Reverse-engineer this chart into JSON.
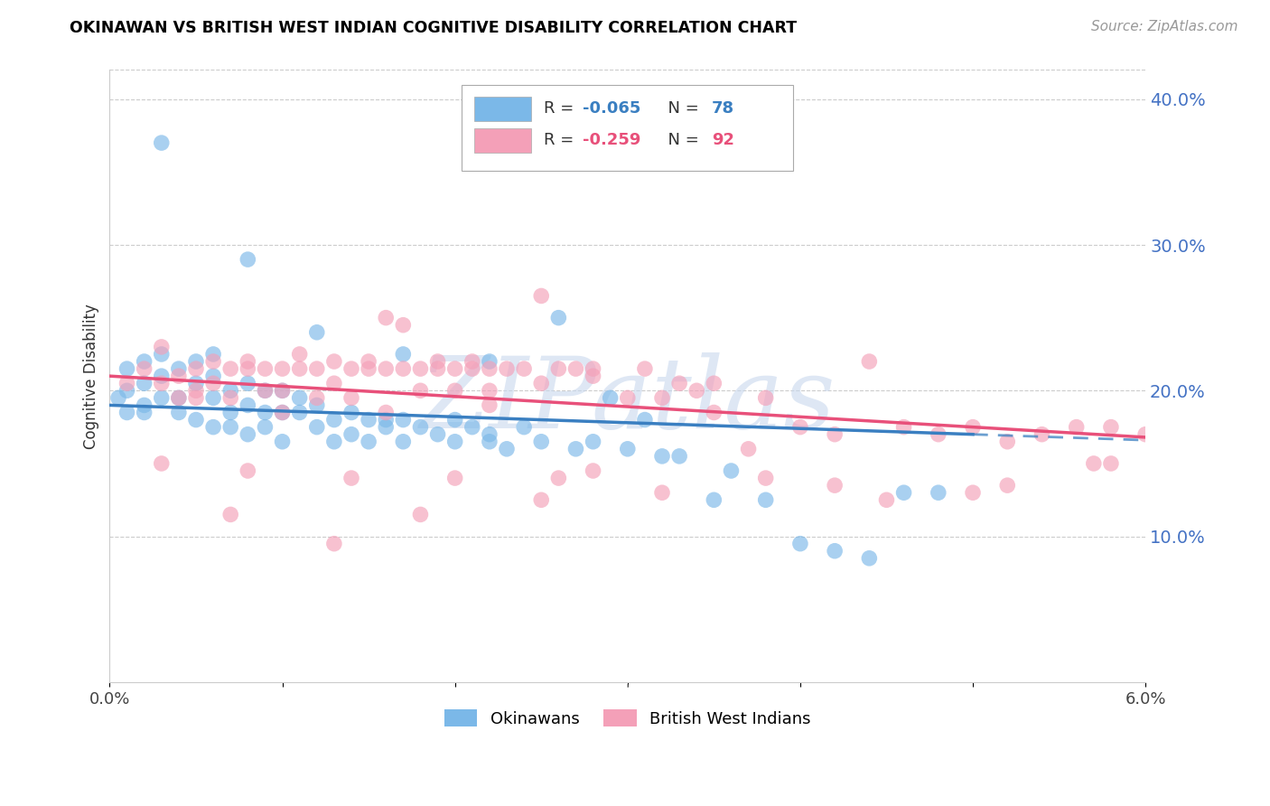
{
  "title": "OKINAWAN VS BRITISH WEST INDIAN COGNITIVE DISABILITY CORRELATION CHART",
  "source": "Source: ZipAtlas.com",
  "ylabel": "Cognitive Disability",
  "xlim": [
    0.0,
    0.06
  ],
  "ylim": [
    0.0,
    0.42
  ],
  "xtick_positions": [
    0.0,
    0.01,
    0.02,
    0.03,
    0.04,
    0.05,
    0.06
  ],
  "xticklabels": [
    "0.0%",
    "",
    "",
    "",
    "",
    "",
    "6.0%"
  ],
  "yticks_right": [
    0.1,
    0.2,
    0.3,
    0.4
  ],
  "ytick_right_labels": [
    "10.0%",
    "20.0%",
    "30.0%",
    "40.0%"
  ],
  "blue_color": "#7bb8e8",
  "pink_color": "#f4a0b8",
  "blue_line_color": "#3a7fc1",
  "pink_line_color": "#e8507a",
  "R_blue": -0.065,
  "N_blue": 78,
  "R_pink": -0.259,
  "N_pink": 92,
  "legend_label_blue": "Okinawans",
  "legend_label_pink": "British West Indians",
  "watermark": "ZIPatlas",
  "watermark_color": "#c8d8ee",
  "background_color": "#ffffff",
  "grid_color": "#cccccc",
  "title_color": "#000000",
  "axis_label_color": "#333333",
  "right_tick_color": "#4472c4",
  "blue_line_intercept": 0.19,
  "blue_line_slope": -0.4,
  "pink_line_intercept": 0.21,
  "pink_line_slope": -0.7,
  "blue_scatter_x": [
    0.0005,
    0.001,
    0.001,
    0.001,
    0.002,
    0.002,
    0.002,
    0.002,
    0.003,
    0.003,
    0.003,
    0.004,
    0.004,
    0.004,
    0.005,
    0.005,
    0.005,
    0.006,
    0.006,
    0.006,
    0.006,
    0.007,
    0.007,
    0.007,
    0.008,
    0.008,
    0.008,
    0.009,
    0.009,
    0.009,
    0.01,
    0.01,
    0.01,
    0.011,
    0.011,
    0.012,
    0.012,
    0.013,
    0.013,
    0.014,
    0.014,
    0.015,
    0.015,
    0.016,
    0.016,
    0.017,
    0.017,
    0.018,
    0.019,
    0.02,
    0.02,
    0.021,
    0.022,
    0.022,
    0.023,
    0.024,
    0.025,
    0.026,
    0.027,
    0.028,
    0.029,
    0.03,
    0.031,
    0.032,
    0.033,
    0.035,
    0.036,
    0.038,
    0.04,
    0.042,
    0.044,
    0.046,
    0.048,
    0.003,
    0.008,
    0.012,
    0.017,
    0.022
  ],
  "blue_scatter_y": [
    0.195,
    0.185,
    0.2,
    0.215,
    0.19,
    0.205,
    0.22,
    0.185,
    0.195,
    0.21,
    0.225,
    0.195,
    0.215,
    0.185,
    0.205,
    0.22,
    0.18,
    0.195,
    0.21,
    0.175,
    0.225,
    0.185,
    0.2,
    0.175,
    0.19,
    0.205,
    0.17,
    0.185,
    0.2,
    0.175,
    0.185,
    0.2,
    0.165,
    0.185,
    0.195,
    0.175,
    0.19,
    0.165,
    0.18,
    0.185,
    0.17,
    0.18,
    0.165,
    0.18,
    0.175,
    0.165,
    0.18,
    0.175,
    0.17,
    0.18,
    0.165,
    0.175,
    0.17,
    0.165,
    0.16,
    0.175,
    0.165,
    0.25,
    0.16,
    0.165,
    0.195,
    0.16,
    0.18,
    0.155,
    0.155,
    0.125,
    0.145,
    0.125,
    0.095,
    0.09,
    0.085,
    0.13,
    0.13,
    0.37,
    0.29,
    0.24,
    0.225,
    0.22
  ],
  "pink_scatter_x": [
    0.001,
    0.002,
    0.003,
    0.003,
    0.004,
    0.004,
    0.005,
    0.005,
    0.006,
    0.006,
    0.007,
    0.007,
    0.008,
    0.008,
    0.009,
    0.009,
    0.01,
    0.01,
    0.011,
    0.011,
    0.012,
    0.012,
    0.013,
    0.013,
    0.014,
    0.014,
    0.015,
    0.015,
    0.016,
    0.016,
    0.017,
    0.017,
    0.018,
    0.018,
    0.019,
    0.019,
    0.02,
    0.02,
    0.021,
    0.021,
    0.022,
    0.022,
    0.023,
    0.024,
    0.025,
    0.025,
    0.026,
    0.027,
    0.028,
    0.028,
    0.03,
    0.031,
    0.032,
    0.033,
    0.034,
    0.035,
    0.037,
    0.038,
    0.04,
    0.042,
    0.044,
    0.046,
    0.048,
    0.05,
    0.052,
    0.054,
    0.056,
    0.058,
    0.06,
    0.005,
    0.01,
    0.016,
    0.022,
    0.028,
    0.035,
    0.042,
    0.05,
    0.057,
    0.003,
    0.008,
    0.014,
    0.02,
    0.026,
    0.032,
    0.038,
    0.045,
    0.052,
    0.058,
    0.007,
    0.013,
    0.018,
    0.025
  ],
  "pink_scatter_y": [
    0.205,
    0.215,
    0.205,
    0.23,
    0.21,
    0.195,
    0.215,
    0.2,
    0.22,
    0.205,
    0.215,
    0.195,
    0.215,
    0.22,
    0.215,
    0.2,
    0.215,
    0.2,
    0.215,
    0.225,
    0.215,
    0.195,
    0.22,
    0.205,
    0.215,
    0.195,
    0.215,
    0.22,
    0.215,
    0.25,
    0.215,
    0.245,
    0.215,
    0.2,
    0.215,
    0.22,
    0.215,
    0.2,
    0.215,
    0.22,
    0.215,
    0.2,
    0.215,
    0.215,
    0.205,
    0.265,
    0.215,
    0.215,
    0.21,
    0.215,
    0.195,
    0.215,
    0.195,
    0.205,
    0.2,
    0.205,
    0.16,
    0.195,
    0.175,
    0.17,
    0.22,
    0.175,
    0.17,
    0.175,
    0.165,
    0.17,
    0.175,
    0.175,
    0.17,
    0.195,
    0.185,
    0.185,
    0.19,
    0.145,
    0.185,
    0.135,
    0.13,
    0.15,
    0.15,
    0.145,
    0.14,
    0.14,
    0.14,
    0.13,
    0.14,
    0.125,
    0.135,
    0.15,
    0.115,
    0.095,
    0.115,
    0.125
  ]
}
